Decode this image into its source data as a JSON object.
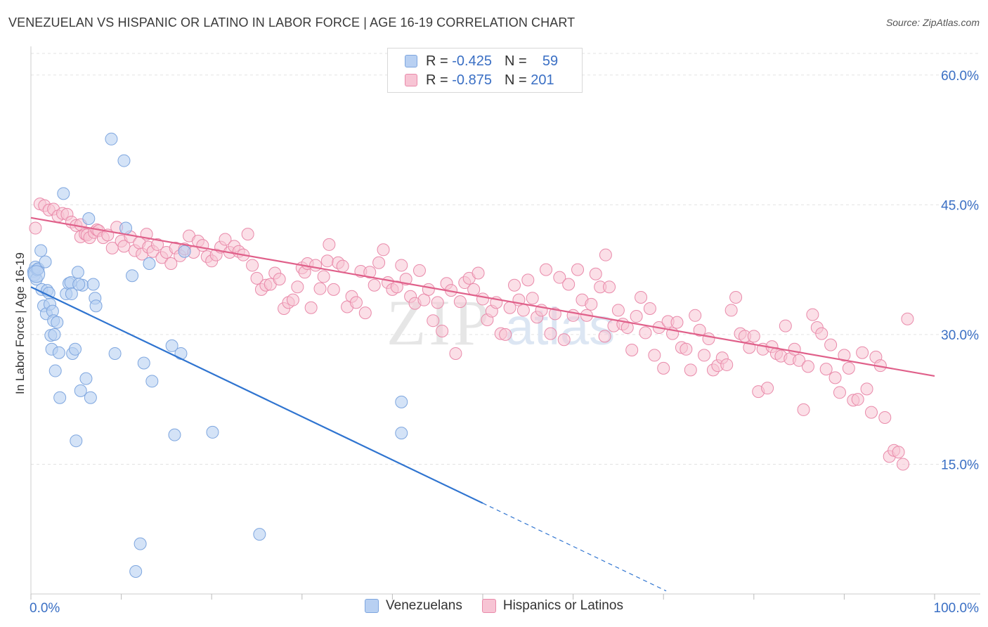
{
  "title": "VENEZUELAN VS HISPANIC OR LATINO IN LABOR FORCE | AGE 16-19 CORRELATION CHART",
  "source": "Source: ZipAtlas.com",
  "watermark": {
    "zip": "ZIP",
    "atlas": "atlas"
  },
  "legend": {
    "r_label": "R =",
    "n_label": "N =",
    "rows": [
      {
        "r": "-0.425",
        "n": "59",
        "fill": "#b8d0f2",
        "stroke": "#7ea6df"
      },
      {
        "r": "-0.875",
        "n": "201",
        "fill": "#f7c4d4",
        "stroke": "#e98aaa"
      }
    ]
  },
  "bottom_legend": [
    {
      "label": "Venezuelans",
      "fill": "#b8d0f2",
      "stroke": "#7ea6df"
    },
    {
      "label": "Hispanics or Latinos",
      "fill": "#f7c4d4",
      "stroke": "#e98aaa"
    }
  ],
  "chart_data": {
    "type": "scatter",
    "title": "VENEZUELAN VS HISPANIC OR LATINO IN LABOR FORCE | AGE 16-19 CORRELATION CHART",
    "xlabel": "",
    "ylabel": "In Labor Force | Age 16-19",
    "xlim": [
      0,
      100
    ],
    "ylim": [
      0,
      62.5
    ],
    "x_tick_labels": [
      "0.0%",
      "100.0%"
    ],
    "y_ticks": [
      15,
      30,
      45,
      60
    ],
    "y_tick_labels": [
      "15.0%",
      "30.0%",
      "45.0%",
      "60.0%"
    ],
    "grid": true,
    "series": [
      {
        "name": "Venezuelans",
        "color": "#7ea6df",
        "fill": "#b8d0f2",
        "trend": {
          "x0": 0,
          "y0": 35.5,
          "x1": 50,
          "y1": 10.5,
          "dash_to_x": 70.3
        },
        "points": [
          [
            0.3,
            37.3
          ],
          [
            0.4,
            36.9
          ],
          [
            0.5,
            37.8
          ],
          [
            0.6,
            36.4
          ],
          [
            0.7,
            37.5
          ],
          [
            0.8,
            37.6
          ],
          [
            1.1,
            39.7
          ],
          [
            1.2,
            35.2
          ],
          [
            1.4,
            33.3
          ],
          [
            1.6,
            38.4
          ],
          [
            1.7,
            32.4
          ],
          [
            1.8,
            35.1
          ],
          [
            2.0,
            34.8
          ],
          [
            2.1,
            33.5
          ],
          [
            2.2,
            29.9
          ],
          [
            2.3,
            28.3
          ],
          [
            2.4,
            32.7
          ],
          [
            2.5,
            31.6
          ],
          [
            2.6,
            30.0
          ],
          [
            2.7,
            25.8
          ],
          [
            2.9,
            31.4
          ],
          [
            3.1,
            27.9
          ],
          [
            3.2,
            22.7
          ],
          [
            3.6,
            46.3
          ],
          [
            3.9,
            34.7
          ],
          [
            4.2,
            35.9
          ],
          [
            4.4,
            36.0
          ],
          [
            4.5,
            34.7
          ],
          [
            4.6,
            27.8
          ],
          [
            4.9,
            28.3
          ],
          [
            5.0,
            17.7
          ],
          [
            5.2,
            37.2
          ],
          [
            5.5,
            23.5
          ],
          [
            5.7,
            35.7
          ],
          [
            6.1,
            24.9
          ],
          [
            6.4,
            43.4
          ],
          [
            6.6,
            22.7
          ],
          [
            6.9,
            35.8
          ],
          [
            7.1,
            34.2
          ],
          [
            7.2,
            33.3
          ],
          [
            8.9,
            52.6
          ],
          [
            9.3,
            27.8
          ],
          [
            10.3,
            50.1
          ],
          [
            10.5,
            42.3
          ],
          [
            11.2,
            36.8
          ],
          [
            11.6,
            2.6
          ],
          [
            12.1,
            5.8
          ],
          [
            12.5,
            26.7
          ],
          [
            13.1,
            38.2
          ],
          [
            13.4,
            24.6
          ],
          [
            15.6,
            28.7
          ],
          [
            15.9,
            18.4
          ],
          [
            16.6,
            27.8
          ],
          [
            17.0,
            39.6
          ],
          [
            20.1,
            18.7
          ],
          [
            25.3,
            6.9
          ],
          [
            41.0,
            22.2
          ],
          [
            41.0,
            18.6
          ],
          [
            5.3,
            35.8
          ]
        ]
      },
      {
        "name": "Hispanics or Latinos",
        "color": "#e98aaa",
        "fill": "#f7c4d4",
        "trend": {
          "x0": 0,
          "y0": 43.5,
          "x1": 100,
          "y1": 25.2
        },
        "points": [
          [
            0.5,
            42.3
          ],
          [
            1.0,
            45.1
          ],
          [
            1.5,
            44.9
          ],
          [
            2.0,
            44.4
          ],
          [
            2.5,
            44.5
          ],
          [
            3.0,
            43.7
          ],
          [
            3.5,
            44.0
          ],
          [
            4.0,
            43.9
          ],
          [
            4.5,
            43.0
          ],
          [
            5.0,
            42.6
          ],
          [
            5.5,
            42.7
          ],
          [
            5.5,
            41.3
          ],
          [
            6.0,
            41.6
          ],
          [
            6.2,
            41.5
          ],
          [
            6.5,
            41.2
          ],
          [
            7.0,
            41.8
          ],
          [
            7.3,
            42.1
          ],
          [
            7.5,
            42.0
          ],
          [
            8.0,
            41.2
          ],
          [
            8.5,
            41.5
          ],
          [
            9.0,
            40.0
          ],
          [
            9.5,
            42.4
          ],
          [
            10.0,
            40.8
          ],
          [
            10.3,
            40.2
          ],
          [
            11.0,
            41.3
          ],
          [
            11.5,
            39.7
          ],
          [
            12.0,
            40.6
          ],
          [
            12.3,
            39.3
          ],
          [
            12.8,
            41.6
          ],
          [
            13.0,
            40.1
          ],
          [
            13.5,
            39.6
          ],
          [
            14.0,
            40.4
          ],
          [
            14.5,
            38.9
          ],
          [
            15.0,
            39.5
          ],
          [
            15.5,
            38.2
          ],
          [
            16.0,
            40.0
          ],
          [
            16.5,
            39.1
          ],
          [
            17.0,
            39.9
          ],
          [
            17.5,
            41.4
          ],
          [
            18.0,
            39.5
          ],
          [
            18.5,
            40.8
          ],
          [
            19.0,
            40.3
          ],
          [
            19.5,
            39.0
          ],
          [
            20.0,
            38.5
          ],
          [
            20.5,
            39.2
          ],
          [
            21.0,
            40.1
          ],
          [
            21.5,
            41.0
          ],
          [
            22.0,
            39.5
          ],
          [
            22.5,
            40.2
          ],
          [
            23.0,
            39.6
          ],
          [
            23.5,
            39.2
          ],
          [
            24.0,
            41.6
          ],
          [
            24.5,
            38.0
          ],
          [
            25.0,
            36.5
          ],
          [
            25.5,
            35.2
          ],
          [
            26.0,
            35.7
          ],
          [
            26.5,
            35.8
          ],
          [
            27.0,
            37.1
          ],
          [
            27.5,
            36.4
          ],
          [
            28.0,
            33.0
          ],
          [
            28.5,
            33.7
          ],
          [
            29.0,
            34.0
          ],
          [
            29.5,
            35.5
          ],
          [
            30.0,
            37.7
          ],
          [
            30.3,
            37.2
          ],
          [
            30.6,
            38.2
          ],
          [
            31.0,
            33.1
          ],
          [
            31.5,
            38.0
          ],
          [
            32.0,
            35.3
          ],
          [
            32.4,
            36.7
          ],
          [
            32.8,
            38.5
          ],
          [
            33.0,
            40.4
          ],
          [
            33.5,
            35.2
          ],
          [
            34.0,
            38.3
          ],
          [
            34.5,
            37.9
          ],
          [
            35.0,
            33.2
          ],
          [
            35.5,
            34.4
          ],
          [
            36.0,
            33.7
          ],
          [
            36.5,
            37.3
          ],
          [
            37.0,
            32.5
          ],
          [
            37.5,
            37.2
          ],
          [
            38.0,
            35.7
          ],
          [
            38.5,
            38.3
          ],
          [
            39.0,
            39.8
          ],
          [
            39.5,
            36.0
          ],
          [
            40.0,
            35.2
          ],
          [
            40.5,
            35.5
          ],
          [
            41.0,
            38.0
          ],
          [
            41.5,
            36.4
          ],
          [
            42.0,
            34.4
          ],
          [
            42.5,
            33.6
          ],
          [
            43.0,
            37.4
          ],
          [
            43.5,
            34.0
          ],
          [
            44.0,
            35.2
          ],
          [
            44.5,
            31.6
          ],
          [
            45.0,
            33.7
          ],
          [
            45.5,
            30.4
          ],
          [
            46.0,
            35.9
          ],
          [
            46.5,
            35.1
          ],
          [
            47.0,
            27.8
          ],
          [
            47.5,
            33.8
          ],
          [
            48.0,
            36.0
          ],
          [
            48.5,
            36.5
          ],
          [
            49.0,
            35.2
          ],
          [
            49.5,
            37.1
          ],
          [
            50.0,
            34.1
          ],
          [
            50.5,
            31.7
          ],
          [
            51.0,
            32.7
          ],
          [
            51.5,
            33.7
          ],
          [
            52.0,
            30.1
          ],
          [
            52.5,
            30.0
          ],
          [
            53.0,
            33.1
          ],
          [
            53.5,
            35.7
          ],
          [
            54.0,
            34.0
          ],
          [
            54.5,
            32.8
          ],
          [
            55.0,
            36.3
          ],
          [
            55.5,
            34.2
          ],
          [
            56.0,
            32.0
          ],
          [
            56.5,
            32.8
          ],
          [
            57.0,
            37.5
          ],
          [
            57.5,
            30.1
          ],
          [
            58.0,
            32.4
          ],
          [
            58.5,
            36.6
          ],
          [
            59.0,
            29.4
          ],
          [
            59.5,
            35.8
          ],
          [
            60.0,
            32.2
          ],
          [
            60.5,
            37.5
          ],
          [
            61.0,
            34.0
          ],
          [
            61.5,
            32.2
          ],
          [
            62.0,
            33.5
          ],
          [
            62.5,
            37.0
          ],
          [
            63.0,
            35.5
          ],
          [
            63.5,
            29.8
          ],
          [
            64.0,
            35.5
          ],
          [
            64.5,
            31.0
          ],
          [
            65.0,
            32.8
          ],
          [
            65.5,
            31.2
          ],
          [
            66.0,
            30.8
          ],
          [
            66.5,
            28.2
          ],
          [
            67.0,
            32.1
          ],
          [
            67.5,
            34.3
          ],
          [
            68.0,
            30.2
          ],
          [
            68.5,
            33.0
          ],
          [
            69.0,
            27.6
          ],
          [
            69.5,
            30.8
          ],
          [
            70.0,
            26.1
          ],
          [
            70.5,
            31.5
          ],
          [
            71.0,
            30.1
          ],
          [
            71.5,
            31.4
          ],
          [
            72.0,
            28.5
          ],
          [
            72.5,
            28.3
          ],
          [
            73.0,
            25.9
          ],
          [
            73.5,
            32.2
          ],
          [
            74.0,
            30.5
          ],
          [
            74.5,
            27.6
          ],
          [
            75.0,
            29.5
          ],
          [
            75.5,
            25.9
          ],
          [
            76.0,
            26.4
          ],
          [
            76.5,
            27.3
          ],
          [
            77.0,
            26.5
          ],
          [
            77.5,
            32.8
          ],
          [
            78.0,
            34.3
          ],
          [
            78.5,
            30.1
          ],
          [
            79.0,
            29.8
          ],
          [
            79.5,
            28.5
          ],
          [
            80.0,
            29.8
          ],
          [
            80.5,
            23.4
          ],
          [
            81.0,
            28.3
          ],
          [
            81.5,
            23.8
          ],
          [
            82.0,
            28.6
          ],
          [
            82.5,
            27.8
          ],
          [
            83.0,
            27.5
          ],
          [
            83.5,
            31.0
          ],
          [
            84.0,
            27.2
          ],
          [
            84.5,
            28.3
          ],
          [
            85.0,
            27.0
          ],
          [
            85.5,
            21.3
          ],
          [
            86.0,
            26.3
          ],
          [
            86.5,
            32.3
          ],
          [
            87.0,
            30.8
          ],
          [
            87.5,
            30.1
          ],
          [
            88.0,
            26.0
          ],
          [
            88.5,
            28.8
          ],
          [
            89.0,
            25.0
          ],
          [
            89.5,
            23.3
          ],
          [
            90.0,
            27.6
          ],
          [
            90.5,
            26.1
          ],
          [
            91.0,
            22.4
          ],
          [
            91.5,
            22.5
          ],
          [
            92.0,
            27.9
          ],
          [
            92.5,
            23.7
          ],
          [
            93.0,
            21.0
          ],
          [
            93.5,
            27.4
          ],
          [
            94.0,
            26.4
          ],
          [
            94.5,
            20.4
          ],
          [
            95.0,
            15.9
          ],
          [
            95.5,
            16.6
          ],
          [
            96.0,
            16.4
          ],
          [
            96.5,
            15.0
          ],
          [
            97.0,
            31.8
          ],
          [
            63.6,
            39.2
          ]
        ]
      }
    ]
  }
}
